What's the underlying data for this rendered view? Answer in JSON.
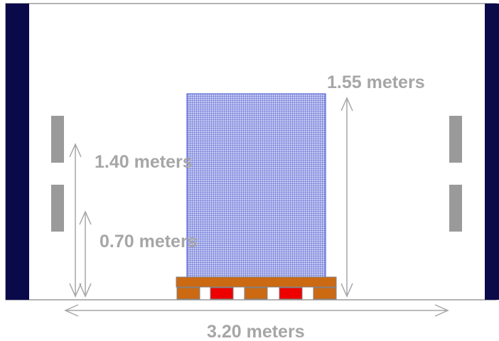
{
  "labels": {
    "load_height": "1.55 meters",
    "upper_height": "1.40 meters",
    "lower_height": "0.70 meters",
    "width": "3.20 meters"
  },
  "colors": {
    "wall": "#0a0a4a",
    "outline": "#9a9a9a",
    "slot": "#9a9a9a",
    "cargo_fill": "#c8ccf0",
    "cargo_grid": "#3a4ad0",
    "pallet_wood": "#cc6a14",
    "pallet_block_red": "#ee0000",
    "dimension_text": "#a6a6a6"
  }
}
